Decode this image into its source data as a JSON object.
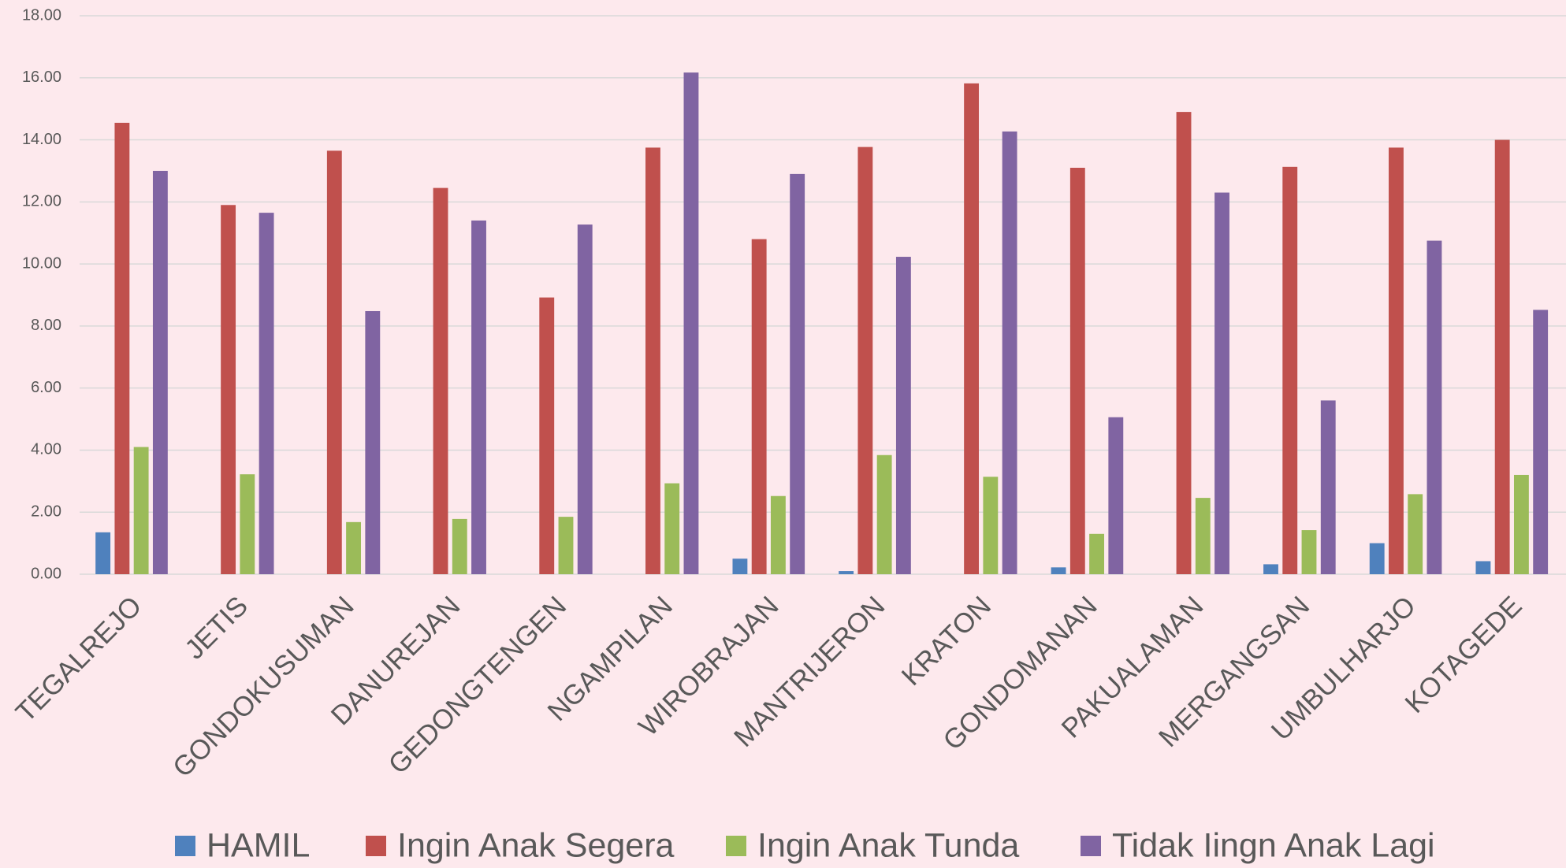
{
  "chart_data": {
    "type": "bar",
    "categories": [
      "TEGALREJO",
      "JETIS",
      "GONDOKUSUMAN",
      "DANUREJAN",
      "GEDONGTENGEN",
      "NGAMPILAN",
      "WIROBRAJAN",
      "MANTRIJERON",
      "KRATON",
      "GONDOMANAN",
      "PAKUALAMAN",
      "MERGANGSAN",
      "UMBULHARJO",
      "KOTAGEDE"
    ],
    "series": [
      {
        "name": "HAMIL",
        "color": "#4f81bd",
        "values": [
          1.35,
          0,
          0,
          0,
          0,
          0,
          0.5,
          0.1,
          0,
          0.22,
          0,
          0.32,
          1.0,
          0.42
        ]
      },
      {
        "name": "Ingin Anak Segera",
        "color": "#c0504d",
        "values": [
          14.55,
          11.9,
          13.65,
          12.45,
          8.92,
          13.75,
          10.8,
          13.77,
          15.82,
          13.1,
          14.9,
          13.13,
          13.75,
          14.0
        ]
      },
      {
        "name": "Ingin Anak Tunda",
        "color": "#9bbb59",
        "values": [
          4.1,
          3.22,
          1.68,
          1.78,
          1.85,
          2.93,
          2.52,
          3.84,
          3.14,
          1.3,
          2.46,
          1.42,
          2.58,
          3.2
        ]
      },
      {
        "name": "Tidak Iingn Anak Lagi",
        "color": "#8064a2",
        "values": [
          13.0,
          11.65,
          8.48,
          11.4,
          11.27,
          16.17,
          12.9,
          10.23,
          14.27,
          5.06,
          12.3,
          5.6,
          10.75,
          8.52
        ]
      }
    ],
    "ylim": [
      0,
      18
    ],
    "yticks": [
      {
        "value": 0,
        "label": "0.00"
      },
      {
        "value": 2,
        "label": "2.00"
      },
      {
        "value": 4,
        "label": "4.00"
      },
      {
        "value": 6,
        "label": "6.00"
      },
      {
        "value": 8,
        "label": "8.00"
      },
      {
        "value": 10,
        "label": "10.00"
      },
      {
        "value": 12,
        "label": "12.00"
      },
      {
        "value": 14,
        "label": "14.00"
      },
      {
        "value": 16,
        "label": "16.00"
      },
      {
        "value": 18,
        "label": "18.00"
      }
    ],
    "grid": true,
    "legend": "bottom"
  }
}
